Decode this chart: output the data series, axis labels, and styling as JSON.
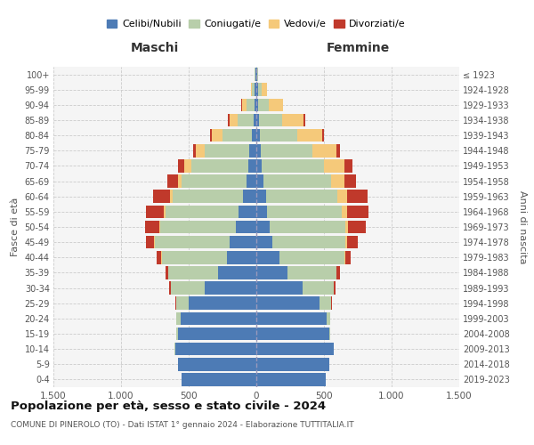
{
  "age_groups": [
    "0-4",
    "5-9",
    "10-14",
    "15-19",
    "20-24",
    "25-29",
    "30-34",
    "35-39",
    "40-44",
    "45-49",
    "50-54",
    "55-59",
    "60-64",
    "65-69",
    "70-74",
    "75-79",
    "80-84",
    "85-89",
    "90-94",
    "95-99",
    "100+"
  ],
  "birth_years": [
    "2019-2023",
    "2014-2018",
    "2009-2013",
    "2004-2008",
    "1999-2003",
    "1994-1998",
    "1989-1993",
    "1984-1988",
    "1979-1983",
    "1974-1978",
    "1969-1973",
    "1964-1968",
    "1959-1963",
    "1954-1958",
    "1949-1953",
    "1944-1948",
    "1939-1943",
    "1934-1938",
    "1929-1933",
    "1924-1928",
    "≤ 1923"
  ],
  "males": {
    "celibe": [
      550,
      580,
      600,
      580,
      560,
      500,
      380,
      280,
      220,
      200,
      150,
      130,
      100,
      70,
      60,
      50,
      30,
      20,
      15,
      10,
      5
    ],
    "coniugato": [
      1,
      2,
      5,
      10,
      30,
      90,
      250,
      370,
      480,
      550,
      560,
      540,
      520,
      480,
      420,
      330,
      220,
      120,
      60,
      20,
      5
    ],
    "vedovo": [
      0,
      0,
      0,
      0,
      1,
      1,
      2,
      3,
      5,
      8,
      10,
      15,
      20,
      30,
      50,
      70,
      80,
      60,
      30,
      10,
      2
    ],
    "divorziato": [
      0,
      0,
      0,
      1,
      2,
      5,
      10,
      20,
      30,
      60,
      100,
      130,
      120,
      80,
      50,
      20,
      15,
      10,
      5,
      2,
      0
    ]
  },
  "females": {
    "nubile": [
      510,
      540,
      570,
      540,
      520,
      470,
      340,
      230,
      170,
      120,
      100,
      80,
      70,
      50,
      40,
      35,
      25,
      20,
      15,
      10,
      5
    ],
    "coniugata": [
      1,
      1,
      3,
      8,
      25,
      80,
      230,
      360,
      480,
      540,
      560,
      550,
      530,
      500,
      460,
      380,
      280,
      170,
      80,
      30,
      5
    ],
    "vedova": [
      0,
      0,
      0,
      0,
      1,
      1,
      2,
      3,
      5,
      10,
      20,
      40,
      70,
      100,
      150,
      180,
      180,
      160,
      100,
      40,
      5
    ],
    "divorziata": [
      0,
      0,
      0,
      1,
      2,
      5,
      15,
      25,
      40,
      80,
      130,
      160,
      150,
      90,
      60,
      25,
      15,
      10,
      5,
      2,
      0
    ]
  },
  "colors": {
    "celibe": "#4d7bb5",
    "coniugato": "#b8ceaa",
    "vedovo": "#f5c97a",
    "divorziato": "#c0392b"
  },
  "xlim": 1500,
  "title": "Popolazione per età, sesso e stato civile - 2024",
  "subtitle": "COMUNE DI PINEROLO (TO) - Dati ISTAT 1° gennaio 2024 - Elaborazione TUTTITALIA.IT",
  "xlabel_left": "Maschi",
  "xlabel_right": "Femmine",
  "ylabel_left": "Fasce di età",
  "ylabel_right": "Anni di nascita",
  "legend_labels": [
    "Celibi/Nubili",
    "Coniugati/e",
    "Vedovi/e",
    "Divorziati/e"
  ],
  "bg_color": "#ffffff",
  "grid_color": "#cccccc"
}
